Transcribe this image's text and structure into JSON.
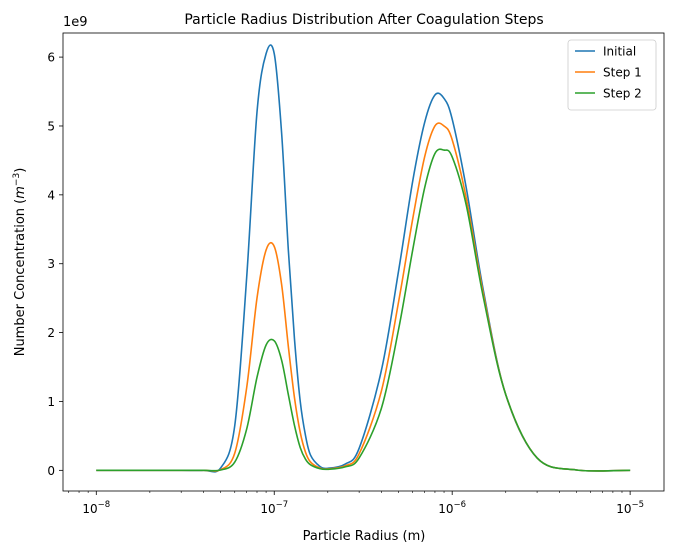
{
  "chart_data": {
    "type": "line",
    "title": "Particle Radius Distribution After Coagulation Steps",
    "xlabel": "Particle Radius (m)",
    "ylabel_prefix": "Number Concentration (",
    "ylabel_unit_base": "m",
    "ylabel_unit_exp": "−3",
    "ylabel_suffix": ")",
    "x_scale": "log",
    "xlim": [
      6.5e-09,
      1.55e-05
    ],
    "ylim": [
      -300000000.0,
      6350000000.0
    ],
    "y_multiplier_label": "1e9",
    "x_ticks": [
      {
        "value": 1e-08,
        "base": "10",
        "exp": "−8"
      },
      {
        "value": 1e-07,
        "base": "10",
        "exp": "−7"
      },
      {
        "value": 1e-06,
        "base": "10",
        "exp": "−6"
      },
      {
        "value": 1e-05,
        "base": "10",
        "exp": "−5"
      }
    ],
    "y_ticks": [
      {
        "value": 0,
        "label": "0"
      },
      {
        "value": 1000000000.0,
        "label": "1"
      },
      {
        "value": 2000000000.0,
        "label": "2"
      },
      {
        "value": 3000000000.0,
        "label": "3"
      },
      {
        "value": 4000000000.0,
        "label": "4"
      },
      {
        "value": 5000000000.0,
        "label": "5"
      },
      {
        "value": 6000000000.0,
        "label": "6"
      }
    ],
    "grid": false,
    "legend_position": "top-right",
    "series": [
      {
        "name": "Initial",
        "color": "#1f77b4",
        "x": [
          1e-08,
          2e-08,
          3e-08,
          4e-08,
          5e-08,
          6e-08,
          7e-08,
          8e-08,
          9e-08,
          1e-07,
          1.1e-07,
          1.2e-07,
          1.3e-07,
          1.4e-07,
          1.5e-07,
          1.6e-07,
          1.8e-07,
          2e-07,
          2.5e-07,
          3e-07,
          4e-07,
          5e-07,
          6e-07,
          7e-07,
          8e-07,
          9e-07,
          1e-06,
          1.2e-06,
          1.5e-06,
          2e-06,
          3e-06,
          5e-06,
          1e-05
        ],
        "y": [
          0,
          0,
          0,
          0,
          35000000.0,
          650000000.0,
          2800000000.0,
          5200000000.0,
          6050000000.0,
          6050000000.0,
          4900000000.0,
          3200000000.0,
          1900000000.0,
          1000000000.0,
          500000000.0,
          220000000.0,
          60000000.0,
          30000000.0,
          90000000.0,
          320000000.0,
          1450000000.0,
          2900000000.0,
          4200000000.0,
          5050000000.0,
          5450000000.0,
          5400000000.0,
          5100000000.0,
          4100000000.0,
          2600000000.0,
          1100000000.0,
          180000000.0,
          5000000.0,
          0
        ]
      },
      {
        "name": "Step 1",
        "color": "#ff7f0e",
        "x": [
          1e-08,
          2e-08,
          3e-08,
          4e-08,
          5e-08,
          6e-08,
          7e-08,
          8e-08,
          9e-08,
          1e-07,
          1.1e-07,
          1.2e-07,
          1.3e-07,
          1.4e-07,
          1.5e-07,
          1.6e-07,
          1.8e-07,
          2e-07,
          2.5e-07,
          3e-07,
          4e-07,
          5e-07,
          6e-07,
          7e-07,
          8e-07,
          9e-07,
          1e-06,
          1.2e-06,
          1.5e-06,
          2e-06,
          3e-06,
          5e-06,
          1e-05
        ],
        "y": [
          0,
          0,
          0,
          0,
          10000000.0,
          250000000.0,
          1200000000.0,
          2500000000.0,
          3200000000.0,
          3250000000.0,
          2700000000.0,
          1800000000.0,
          1050000000.0,
          550000000.0,
          260000000.0,
          120000000.0,
          35000000.0,
          20000000.0,
          65000000.0,
          240000000.0,
          1150000000.0,
          2450000000.0,
          3650000000.0,
          4550000000.0,
          5000000000.0,
          5000000000.0,
          4800000000.0,
          3950000000.0,
          2550000000.0,
          1100000000.0,
          180000000.0,
          5000000.0,
          0
        ]
      },
      {
        "name": "Step 2",
        "color": "#2ca02c",
        "x": [
          1e-08,
          2e-08,
          3e-08,
          4e-08,
          5e-08,
          6e-08,
          7e-08,
          8e-08,
          9e-08,
          1e-07,
          1.1e-07,
          1.2e-07,
          1.3e-07,
          1.4e-07,
          1.5e-07,
          1.6e-07,
          1.8e-07,
          2e-07,
          2.5e-07,
          3e-07,
          4e-07,
          5e-07,
          6e-07,
          7e-07,
          8e-07,
          9e-07,
          1e-06,
          1.2e-06,
          1.5e-06,
          2e-06,
          3e-06,
          5e-06,
          1e-05
        ],
        "y": [
          0,
          0,
          0,
          0,
          5000000.0,
          120000000.0,
          600000000.0,
          1350000000.0,
          1820000000.0,
          1880000000.0,
          1600000000.0,
          1100000000.0,
          650000000.0,
          330000000.0,
          160000000.0,
          80000000.0,
          25000000.0,
          15000000.0,
          50000000.0,
          180000000.0,
          900000000.0,
          2050000000.0,
          3200000000.0,
          4100000000.0,
          4600000000.0,
          4650000000.0,
          4550000000.0,
          3850000000.0,
          2500000000.0,
          1100000000.0,
          180000000.0,
          5000000.0,
          0
        ]
      }
    ]
  }
}
